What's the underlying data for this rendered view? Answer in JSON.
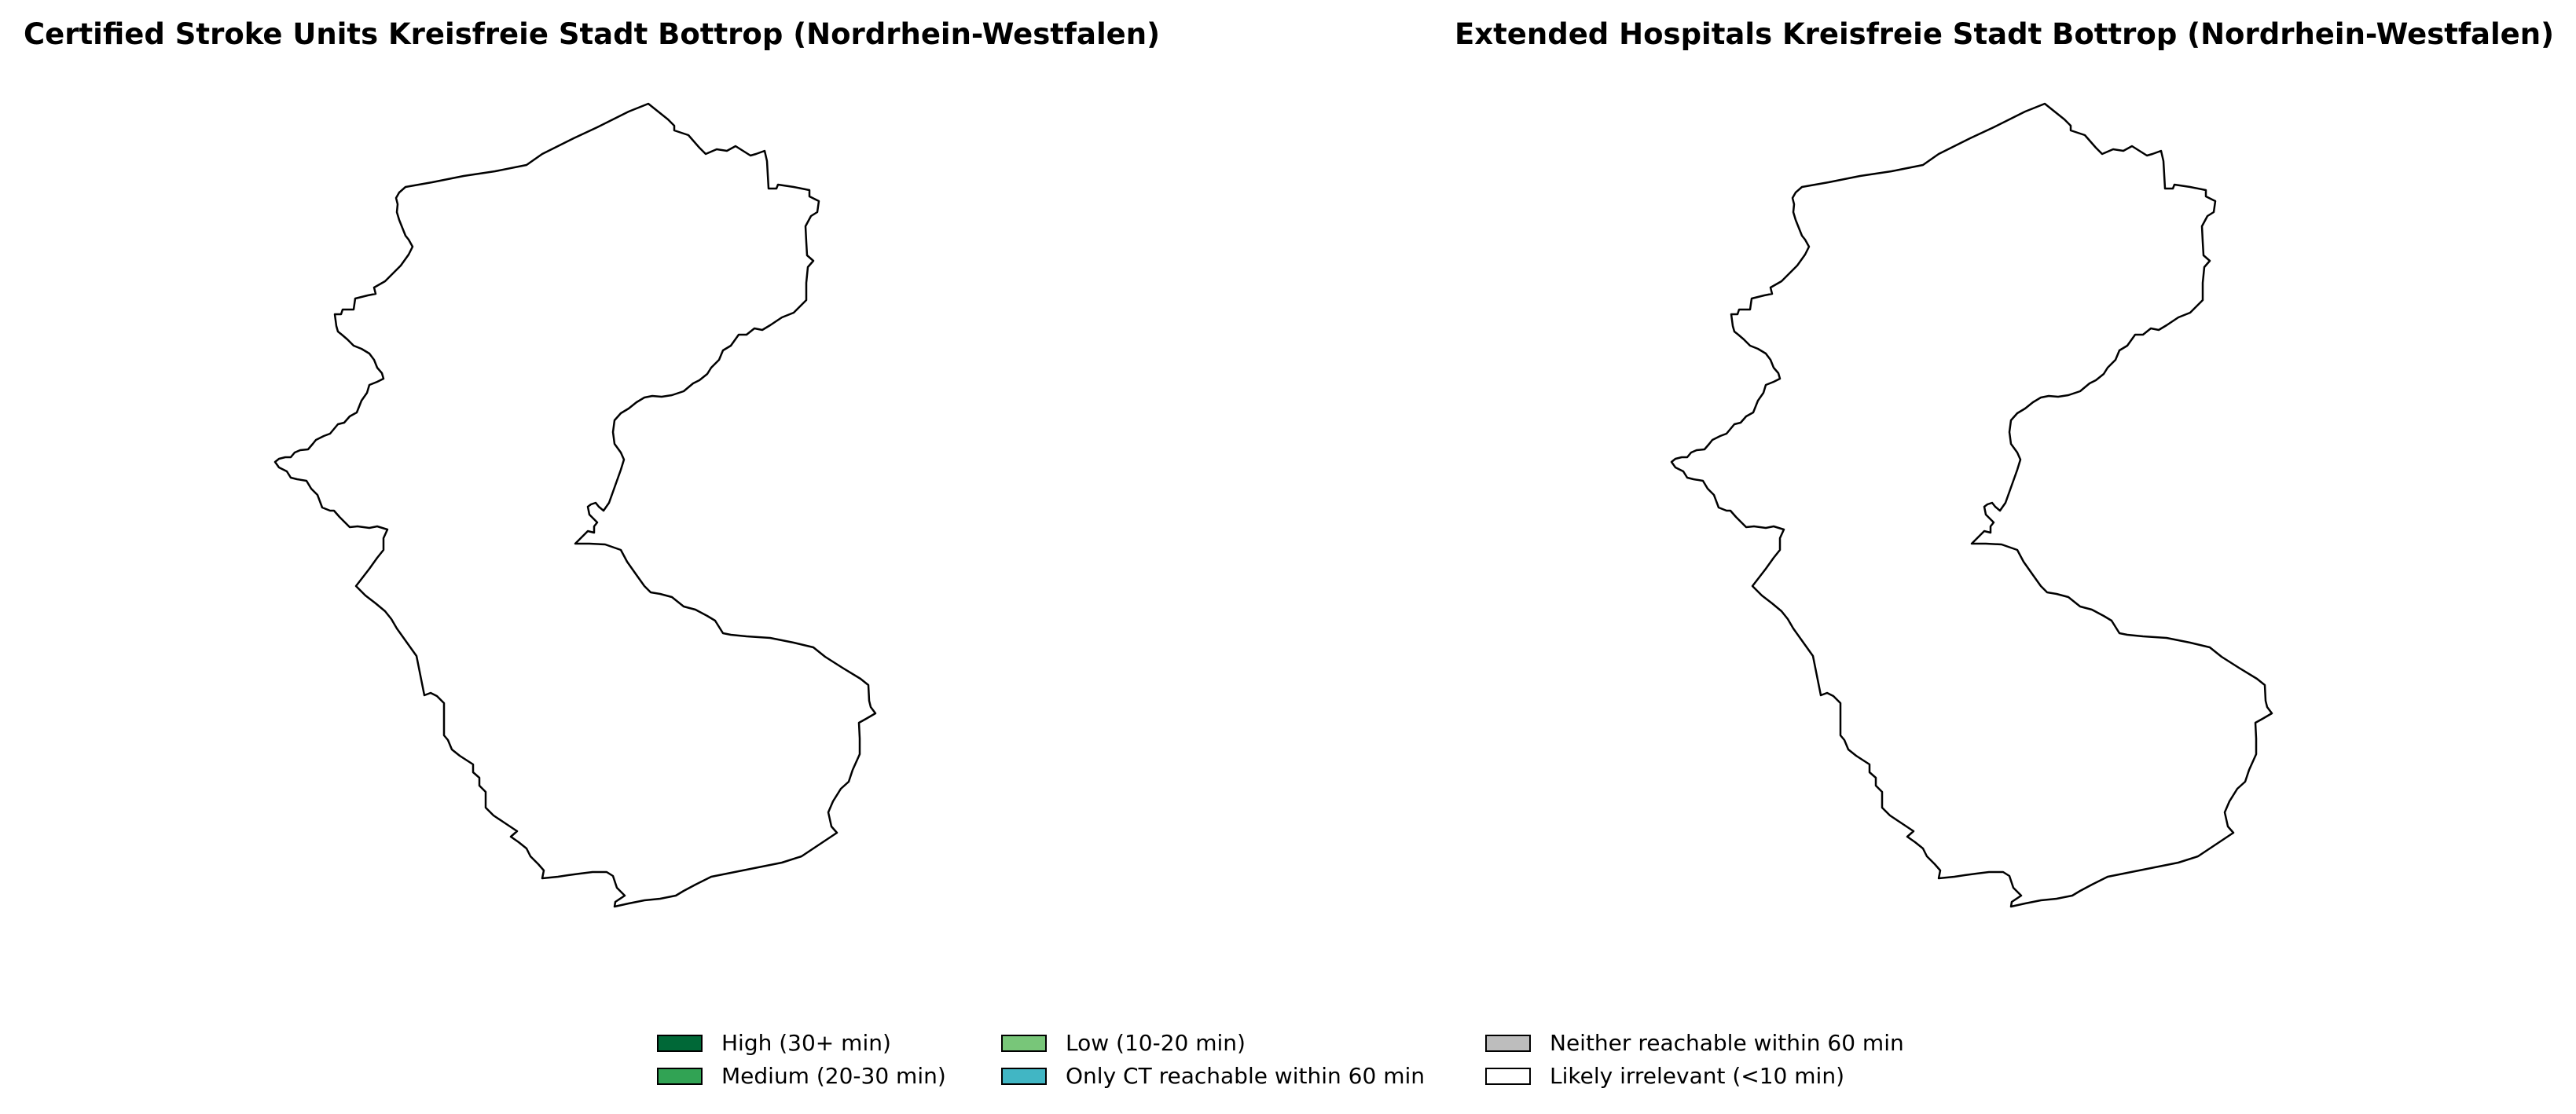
{
  "maps": [
    {
      "title": "Certified Stroke Units Kreisfreie Stadt Bottrop (Nordrhein-Westfalen)",
      "region_fill": "#ffffff"
    },
    {
      "title": "Extended Hospitals Kreisfreie Stadt Bottrop (Nordrhein-Westfalen)",
      "region_fill": "#ffffff"
    }
  ],
  "legend": {
    "items": [
      {
        "label": "High (30+ min)",
        "color": "#006837"
      },
      {
        "label": "Medium (20-30 min)",
        "color": "#31a354"
      },
      {
        "label": "Low (10-20 min)",
        "color": "#78c679"
      },
      {
        "label": "Only CT reachable within 60 min",
        "color": "#41b6c4"
      },
      {
        "label": "Neither reachable within 60 min",
        "color": "#bdbdbd"
      },
      {
        "label": "Likely irrelevant (<10 min)",
        "color": "#ffffff"
      }
    ]
  }
}
